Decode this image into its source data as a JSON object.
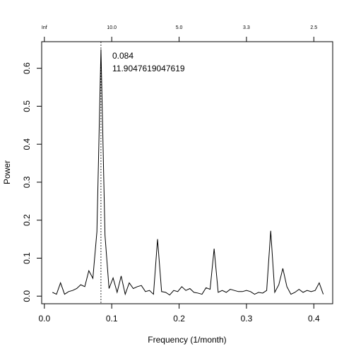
{
  "chart_data": {
    "type": "line",
    "xlabel": "Frequency (1/month)",
    "ylabel": "Power",
    "x": [
      0.012,
      0.018,
      0.024,
      0.03,
      0.036,
      0.042,
      0.048,
      0.054,
      0.06,
      0.066,
      0.072,
      0.078,
      0.084,
      0.09,
      0.096,
      0.102,
      0.108,
      0.114,
      0.12,
      0.126,
      0.132,
      0.138,
      0.144,
      0.15,
      0.156,
      0.162,
      0.168,
      0.174,
      0.18,
      0.186,
      0.192,
      0.198,
      0.204,
      0.21,
      0.216,
      0.222,
      0.228,
      0.234,
      0.24,
      0.246,
      0.252,
      0.258,
      0.264,
      0.27,
      0.276,
      0.282,
      0.288,
      0.294,
      0.3,
      0.306,
      0.312,
      0.318,
      0.324,
      0.33,
      0.336,
      0.342,
      0.348,
      0.354,
      0.36,
      0.366,
      0.372,
      0.378,
      0.384,
      0.39,
      0.396,
      0.402,
      0.408,
      0.414
    ],
    "series": [
      {
        "color": "#000000",
        "values": [
          0.01,
          0.005,
          0.035,
          0.005,
          0.012,
          0.015,
          0.02,
          0.03,
          0.025,
          0.067,
          0.047,
          0.17,
          0.65,
          0.16,
          0.02,
          0.048,
          0.01,
          0.053,
          0.005,
          0.035,
          0.02,
          0.025,
          0.028,
          0.012,
          0.015,
          0.005,
          0.15,
          0.012,
          0.01,
          0.003,
          0.015,
          0.012,
          0.025,
          0.015,
          0.02,
          0.01,
          0.008,
          0.005,
          0.022,
          0.018,
          0.125,
          0.01,
          0.015,
          0.01,
          0.018,
          0.015,
          0.012,
          0.012,
          0.015,
          0.012,
          0.005,
          0.01,
          0.008,
          0.015,
          0.172,
          0.01,
          0.03,
          0.073,
          0.025,
          0.005,
          0.01,
          0.018,
          0.01,
          0.015,
          0.012,
          0.015,
          0.035,
          0.005
        ]
      }
    ],
    "xlim": [
      -0.004,
      0.428
    ],
    "ylim": [
      -0.02,
      0.67
    ],
    "xticks": [
      {
        "value": 0,
        "label": "0.0"
      },
      0.1,
      0.2,
      0.3,
      0.4
    ],
    "yticks": [
      {
        "value": 0,
        "label": "0.0"
      },
      0.1,
      0.2,
      0.3,
      0.4,
      0.5,
      0.6
    ],
    "x2ticks": [
      {
        "value": 0,
        "label": "Inf"
      },
      {
        "value": 0.1,
        "label": "10.0"
      },
      {
        "value": 0.2,
        "label": "5.0"
      },
      {
        "value": 0.3,
        "label": "3.3"
      },
      {
        "value": 0.4,
        "label": "2.5"
      }
    ],
    "vline": 0.084,
    "annotations": [
      "0.084",
      "11.9047619047619"
    ]
  }
}
